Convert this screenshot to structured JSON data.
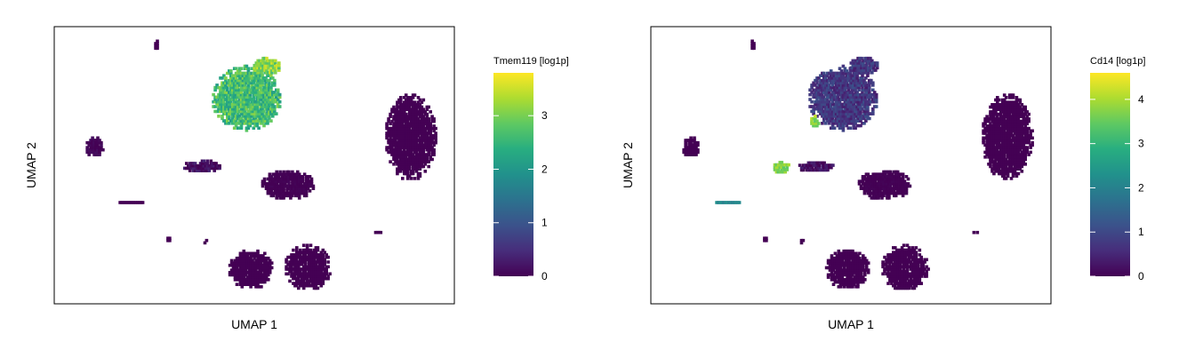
{
  "chart_data": [
    {
      "type": "scatter",
      "subtype": "umap-hexbin-feature-plot",
      "xlabel": "UMAP 1",
      "ylabel": "UMAP 2",
      "grid": false,
      "legend": {
        "title": "Tmem119 [log1p]",
        "placement": "right",
        "ticks": [
          0,
          1,
          2,
          3
        ],
        "range": [
          0,
          3.8
        ],
        "colormap": "viridis"
      },
      "clusters": [
        {
          "cx": -1.2,
          "cy": 1.8,
          "rx": 1.7,
          "ry": 1.15,
          "value": 2.6,
          "spread": 0.55
        },
        {
          "cx": -0.2,
          "cy": 2.95,
          "rx": 0.7,
          "ry": 0.32,
          "value": 3.1,
          "spread": 0.5
        },
        {
          "cx": -5.6,
          "cy": 3.7,
          "rx": 0.12,
          "ry": 0.2,
          "value": 0,
          "spread": 0
        },
        {
          "cx": -8.6,
          "cy": 0.05,
          "rx": 0.45,
          "ry": 0.35,
          "value": 0.05,
          "spread": 0.1
        },
        {
          "cx": -3.3,
          "cy": -0.65,
          "rx": 1.0,
          "ry": 0.22,
          "value": 0.1,
          "spread": 0.3
        },
        {
          "cx": 0.8,
          "cy": -1.3,
          "rx": 1.3,
          "ry": 0.55,
          "value": 0,
          "spread": 0.05
        },
        {
          "cx": 6.8,
          "cy": 0.4,
          "rx": 1.25,
          "ry": 1.55,
          "value": 0,
          "spread": 0
        },
        {
          "cx": -6.8,
          "cy": -1.95,
          "rx": 0.65,
          "ry": 0.06,
          "value": 0,
          "spread": 0
        },
        {
          "cx": -1.0,
          "cy": -4.3,
          "rx": 1.1,
          "ry": 0.72,
          "value": 0,
          "spread": 0
        },
        {
          "cx": 1.8,
          "cy": -4.25,
          "rx": 1.15,
          "ry": 0.82,
          "value": 0,
          "spread": 0
        },
        {
          "cx": 5.2,
          "cy": -3.0,
          "rx": 0.2,
          "ry": 0.08,
          "value": 0,
          "spread": 0
        },
        {
          "cx": -5.0,
          "cy": -3.25,
          "rx": 0.12,
          "ry": 0.12,
          "value": 0,
          "spread": 0
        },
        {
          "cx": -3.2,
          "cy": -3.35,
          "rx": 0.12,
          "ry": 0.1,
          "value": 0,
          "spread": 0
        }
      ]
    },
    {
      "type": "scatter",
      "subtype": "umap-hexbin-feature-plot",
      "xlabel": "UMAP 1",
      "ylabel": "UMAP 2",
      "grid": false,
      "legend": {
        "title": "Cd14 [log1p]",
        "placement": "right",
        "ticks": [
          0,
          1,
          2,
          3,
          4
        ],
        "range": [
          0,
          4.6
        ],
        "colormap": "viridis"
      },
      "clusters": [
        {
          "cx": -1.2,
          "cy": 1.8,
          "rx": 1.7,
          "ry": 1.15,
          "value": 0.75,
          "spread": 0.4
        },
        {
          "cx": -0.2,
          "cy": 2.95,
          "rx": 0.7,
          "ry": 0.32,
          "value": 0.7,
          "spread": 0.4
        },
        {
          "cx": -2.6,
          "cy": 0.95,
          "rx": 0.22,
          "ry": 0.22,
          "value": 3.8,
          "spread": 0.4
        },
        {
          "cx": -5.6,
          "cy": 3.7,
          "rx": 0.12,
          "ry": 0.2,
          "value": 0,
          "spread": 0
        },
        {
          "cx": -8.6,
          "cy": 0.05,
          "rx": 0.45,
          "ry": 0.35,
          "value": 0,
          "spread": 0
        },
        {
          "cx": -4.2,
          "cy": -0.7,
          "rx": 0.42,
          "ry": 0.22,
          "value": 3.7,
          "spread": 0.4
        },
        {
          "cx": -2.5,
          "cy": -0.65,
          "rx": 0.9,
          "ry": 0.2,
          "value": 0.15,
          "spread": 0.3
        },
        {
          "cx": 0.8,
          "cy": -1.3,
          "rx": 1.3,
          "ry": 0.55,
          "value": 0,
          "spread": 0.05
        },
        {
          "cx": 6.8,
          "cy": 0.4,
          "rx": 1.25,
          "ry": 1.55,
          "value": 0,
          "spread": 0
        },
        {
          "cx": -6.8,
          "cy": -1.95,
          "rx": 0.65,
          "ry": 0.06,
          "value": 2.1,
          "spread": 0.2
        },
        {
          "cx": -1.0,
          "cy": -4.3,
          "rx": 1.1,
          "ry": 0.72,
          "value": 0,
          "spread": 0
        },
        {
          "cx": 1.8,
          "cy": -4.25,
          "rx": 1.15,
          "ry": 0.82,
          "value": 0,
          "spread": 0
        },
        {
          "cx": 5.2,
          "cy": -3.0,
          "rx": 0.2,
          "ry": 0.08,
          "value": 0,
          "spread": 0
        },
        {
          "cx": -5.0,
          "cy": -3.25,
          "rx": 0.12,
          "ry": 0.12,
          "value": 0,
          "spread": 0
        },
        {
          "cx": -3.2,
          "cy": -3.35,
          "rx": 0.12,
          "ry": 0.1,
          "value": 0,
          "spread": 0
        }
      ]
    }
  ]
}
